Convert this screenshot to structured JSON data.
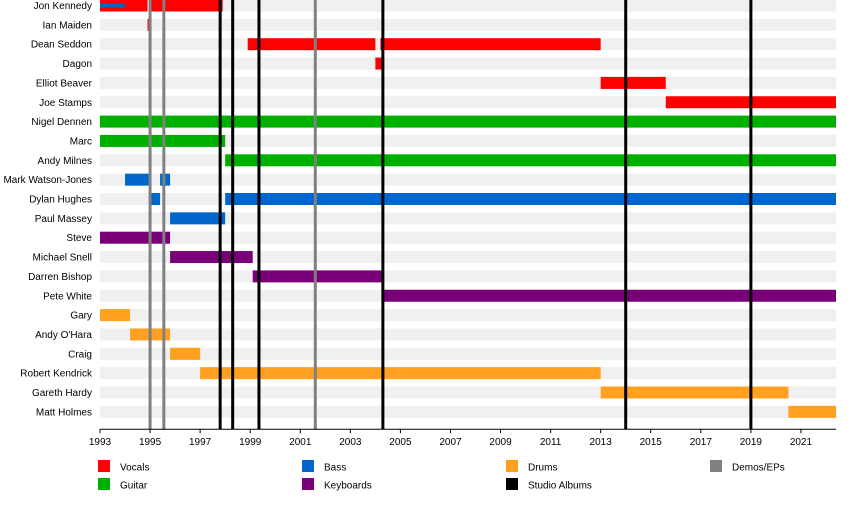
{
  "chart_data": {
    "type": "timeline",
    "x_range": [
      1993,
      2022.4
    ],
    "x_ticks": [
      "1993",
      "1995",
      "1997",
      "1999",
      "2001",
      "2003",
      "2005",
      "2007",
      "2009",
      "2011",
      "2013",
      "2015",
      "2017",
      "2019",
      "2021"
    ],
    "grid": "alternating horizontal bands",
    "legend_position": "bottom",
    "roles": {
      "vocals": {
        "label": "Vocals",
        "color": "#ff0000"
      },
      "guitar": {
        "label": "Guitar",
        "color": "#00b000"
      },
      "bass": {
        "label": "Bass",
        "color": "#0066cc"
      },
      "keyboards": {
        "label": "Keyboards",
        "color": "#7a007a"
      },
      "drums": {
        "label": "Drums",
        "color": "#ffa020"
      },
      "studio": {
        "label": "Studio Albums",
        "color": "#000000"
      },
      "demos": {
        "label": "Demos/EPs",
        "color": "#808080"
      }
    },
    "legend_order": [
      "vocals",
      "guitar",
      "bass",
      "keyboards",
      "drums",
      "studio",
      "demos"
    ],
    "members": [
      {
        "name": "Jon Kennedy",
        "spans": [
          {
            "role": "vocals",
            "start": 1993.0,
            "end": 1994.9
          },
          {
            "role": "vocals",
            "start": 1995.0,
            "end": 1997.9
          },
          {
            "role": "bass",
            "start": 1993.0,
            "end": 1994.0,
            "secondary": true
          }
        ]
      },
      {
        "name": "Ian Maiden",
        "spans": [
          {
            "role": "vocals",
            "start": 1994.9,
            "end": 1995.05
          }
        ]
      },
      {
        "name": "Dean Seddon",
        "spans": [
          {
            "role": "vocals",
            "start": 1998.9,
            "end": 2004.0
          },
          {
            "role": "vocals",
            "start": 2004.2,
            "end": 2013.0
          }
        ]
      },
      {
        "name": "Dagon",
        "spans": [
          {
            "role": "vocals",
            "start": 2004.0,
            "end": 2004.25
          }
        ]
      },
      {
        "name": "Elliot Beaver",
        "spans": [
          {
            "role": "vocals",
            "start": 2013.0,
            "end": 2015.6
          }
        ]
      },
      {
        "name": "Joe Stamps",
        "spans": [
          {
            "role": "vocals",
            "start": 2015.6,
            "end": 2022.4
          }
        ]
      },
      {
        "name": "Nigel Dennen",
        "spans": [
          {
            "role": "guitar",
            "start": 1993.0,
            "end": 2022.4
          }
        ]
      },
      {
        "name": "Marc",
        "spans": [
          {
            "role": "guitar",
            "start": 1993.0,
            "end": 1998.0
          }
        ]
      },
      {
        "name": "Andy Milnes",
        "spans": [
          {
            "role": "guitar",
            "start": 1998.0,
            "end": 2022.4
          }
        ]
      },
      {
        "name": "Mark Watson-Jones",
        "spans": [
          {
            "role": "bass",
            "start": 1994.0,
            "end": 1995.0
          },
          {
            "role": "bass",
            "start": 1995.4,
            "end": 1995.8
          }
        ]
      },
      {
        "name": "Dylan Hughes",
        "spans": [
          {
            "role": "bass",
            "start": 1995.0,
            "end": 1995.4
          },
          {
            "role": "bass",
            "start": 1998.0,
            "end": 2022.4
          }
        ]
      },
      {
        "name": "Paul Massey",
        "spans": [
          {
            "role": "bass",
            "start": 1995.8,
            "end": 1998.0
          }
        ]
      },
      {
        "name": "Steve",
        "spans": [
          {
            "role": "keyboards",
            "start": 1993.0,
            "end": 1995.8
          }
        ]
      },
      {
        "name": "Michael Snell",
        "spans": [
          {
            "role": "keyboards",
            "start": 1995.8,
            "end": 1999.1
          }
        ]
      },
      {
        "name": "Darren Bishop",
        "spans": [
          {
            "role": "keyboards",
            "start": 1999.1,
            "end": 2004.3
          }
        ]
      },
      {
        "name": "Pete White",
        "spans": [
          {
            "role": "keyboards",
            "start": 2004.3,
            "end": 2022.4
          }
        ]
      },
      {
        "name": "Gary",
        "spans": [
          {
            "role": "drums",
            "start": 1993.0,
            "end": 1994.2
          }
        ]
      },
      {
        "name": "Andy O'Hara",
        "spans": [
          {
            "role": "drums",
            "start": 1994.2,
            "end": 1995.8
          }
        ]
      },
      {
        "name": "Craig",
        "spans": [
          {
            "role": "drums",
            "start": 1995.8,
            "end": 1997.0
          }
        ]
      },
      {
        "name": "Robert Kendrick",
        "spans": [
          {
            "role": "drums",
            "start": 1997.0,
            "end": 2013.0
          }
        ]
      },
      {
        "name": "Gareth Hardy",
        "spans": [
          {
            "role": "drums",
            "start": 2013.0,
            "end": 2020.5
          }
        ]
      },
      {
        "name": "Matt Holmes",
        "spans": [
          {
            "role": "drums",
            "start": 2020.5,
            "end": 2022.4
          }
        ]
      }
    ],
    "events": [
      {
        "type": "demos",
        "date": 1995.0
      },
      {
        "type": "demos",
        "date": 1995.55
      },
      {
        "type": "demos",
        "date": 2001.6
      },
      {
        "type": "studio",
        "date": 1997.8
      },
      {
        "type": "studio",
        "date": 1998.3
      },
      {
        "type": "studio",
        "date": 1999.35
      },
      {
        "type": "studio",
        "date": 2004.3
      },
      {
        "type": "studio",
        "date": 2014.0
      },
      {
        "type": "studio",
        "date": 2019.0
      }
    ]
  }
}
